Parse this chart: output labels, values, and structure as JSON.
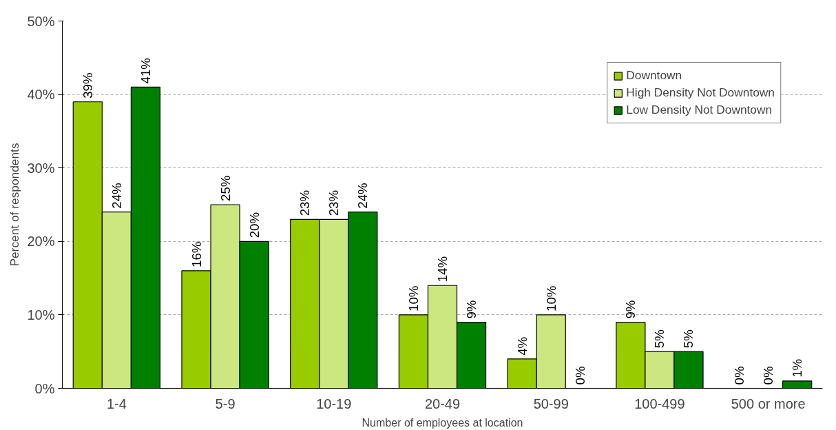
{
  "chart_data": {
    "type": "bar",
    "xlabel": "Number of employees at location",
    "ylabel": "Percent of respondents",
    "categories": [
      "1-4",
      "5-9",
      "10-19",
      "20-49",
      "50-99",
      "100-499",
      "500 or more"
    ],
    "series": [
      {
        "name": "Downtown",
        "color": "#99cc00",
        "values": [
          39,
          16,
          23,
          10,
          4,
          9,
          0
        ],
        "value_labels": [
          "39%",
          "16%",
          "23%",
          "10%",
          "4%",
          "9%",
          "0%"
        ]
      },
      {
        "name": "High Density Not Downtown",
        "color": "#cce680",
        "values": [
          24,
          25,
          23,
          14,
          10,
          5,
          0
        ],
        "value_labels": [
          "24%",
          "25%",
          "23%",
          "14%",
          "10%",
          "5%",
          "0%"
        ]
      },
      {
        "name": "Low Density Not Downtown",
        "color": "#008000",
        "values": [
          41,
          20,
          24,
          9,
          0,
          5,
          1
        ],
        "value_labels": [
          "41%",
          "20%",
          "24%",
          "9%",
          "0%",
          "5%",
          "1%"
        ]
      }
    ],
    "ylim": [
      0,
      50
    ],
    "yticks": [
      {
        "value": 0,
        "label": "0%"
      },
      {
        "value": 10,
        "label": "10%"
      },
      {
        "value": 20,
        "label": "20%"
      },
      {
        "value": 30,
        "label": "30%"
      },
      {
        "value": 40,
        "label": "40%"
      },
      {
        "value": 50,
        "label": "50%"
      }
    ],
    "grid": "y",
    "legend": "top right"
  }
}
